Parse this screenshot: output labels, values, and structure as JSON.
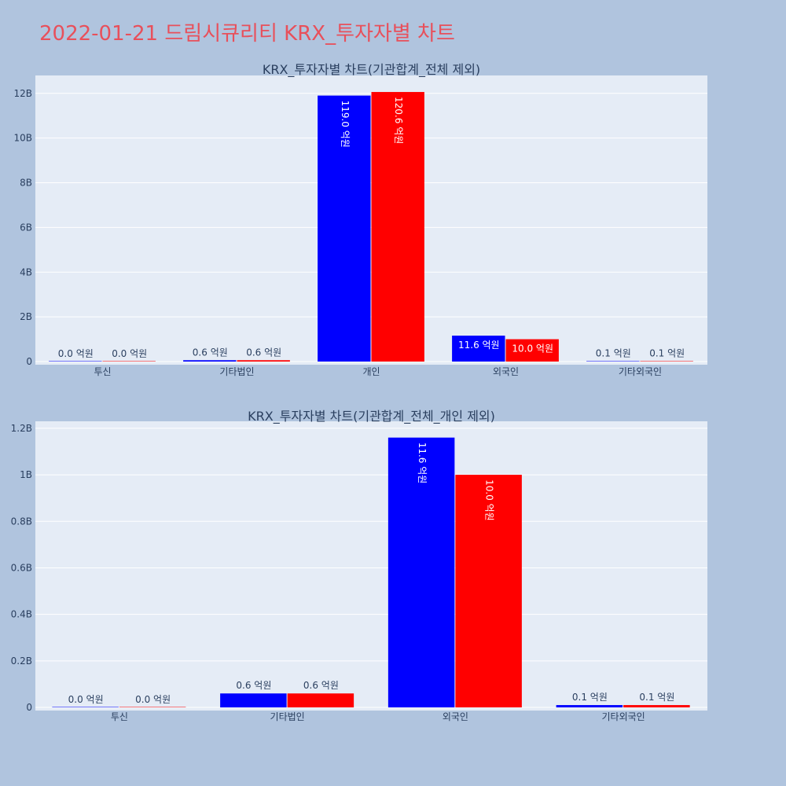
{
  "page": {
    "title": "2022-01-21 드림시큐리티 KRX_투자자별 차트"
  },
  "colors": {
    "background": "#b0c4de",
    "plot_bg": "#e5ecf6",
    "series_a": "#0000ff",
    "series_b": "#ff0000",
    "title": "#e8505b",
    "text": "#2a3f5f"
  },
  "chart_data": [
    {
      "type": "bar",
      "title": "KRX_투자자별 차트(기관합계_전체 제외)",
      "categories": [
        "투신",
        "기타법인",
        "개인",
        "외국인",
        "기타외국인"
      ],
      "series": [
        {
          "color": "#0000ff",
          "values": [
            0,
            60000000,
            11900000000,
            1160000000,
            10000000
          ],
          "labels": [
            "0.0 억원",
            "0.6 억원",
            "119.0 억원",
            "11.6 억원",
            "0.1 억원"
          ]
        },
        {
          "color": "#ff0000",
          "values": [
            0,
            60000000,
            12060000000,
            1000000000,
            10000000
          ],
          "labels": [
            "0.0 억원",
            "0.6 억원",
            "120.6 억원",
            "10.0 억원",
            "0.1 억원"
          ]
        }
      ],
      "yticks": [
        0,
        2000000000,
        4000000000,
        6000000000,
        8000000000,
        10000000000,
        12000000000
      ],
      "ytick_labels": [
        "0",
        "2B",
        "4B",
        "6B",
        "8B",
        "10B",
        "12B"
      ],
      "ylim": [
        0,
        12800000000
      ],
      "grid": true
    },
    {
      "type": "bar",
      "title": "KRX_투자자별 차트(기관합계_전체_개인 제외)",
      "categories": [
        "투신",
        "기타법인",
        "외국인",
        "기타외국인"
      ],
      "series": [
        {
          "color": "#0000ff",
          "values": [
            0,
            60000000,
            1160000000,
            10000000
          ],
          "labels": [
            "0.0 억원",
            "0.6 억원",
            "11.6 억원",
            "0.1 억원"
          ]
        },
        {
          "color": "#ff0000",
          "values": [
            0,
            60000000,
            1000000000,
            10000000
          ],
          "labels": [
            "0.0 억원",
            "0.6 억원",
            "10.0 억원",
            "0.1 억원"
          ]
        }
      ],
      "yticks": [
        0,
        200000000,
        400000000,
        600000000,
        800000000,
        1000000000,
        1200000000
      ],
      "ytick_labels": [
        "0",
        "0.2B",
        "0.4B",
        "0.6B",
        "0.8B",
        "1B",
        "1.2B"
      ],
      "ylim": [
        0,
        1230000000
      ],
      "grid": true
    }
  ]
}
